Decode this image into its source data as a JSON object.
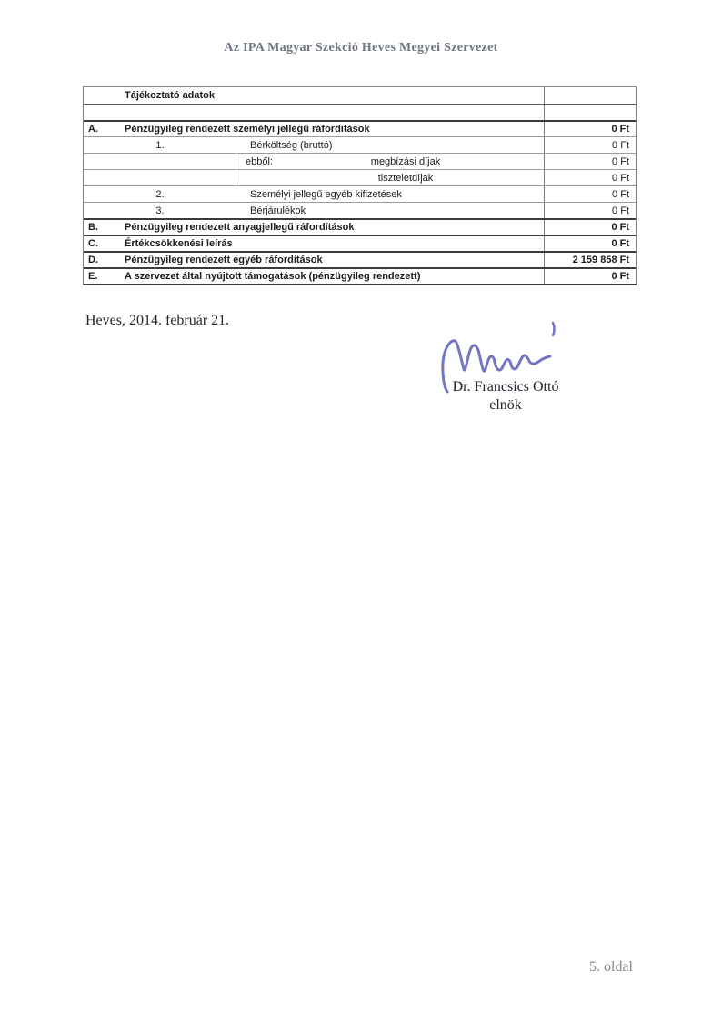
{
  "header": {
    "title": "Az IPA Magyar Szekció Heves Megyei Szervezet",
    "title_color": "#6e7580"
  },
  "table": {
    "rows": [
      {
        "style": "header",
        "text": "Tájékoztató adatok",
        "value": ""
      },
      {
        "style": "empty",
        "value": ""
      },
      {
        "style": "section",
        "letter": "A.",
        "text": "Pénzügyileg rendezett személyi jellegű ráfordítások",
        "value": "0 Ft"
      },
      {
        "style": "item",
        "num": "1.",
        "text": "Bérköltség (bruttó)",
        "value": "0 Ft"
      },
      {
        "style": "sub",
        "prefix": "ebből:",
        "text": "megbízási díjak",
        "value": "0 Ft"
      },
      {
        "style": "sub",
        "text": "tiszteletdíjak",
        "value": "0 Ft"
      },
      {
        "style": "item",
        "num": "2.",
        "text": "Személyi jellegű egyéb kifizetések",
        "value": "0 Ft"
      },
      {
        "style": "item",
        "num": "3.",
        "text": "Bérjárulékok",
        "value": "0 Ft"
      },
      {
        "style": "section",
        "letter": "B.",
        "text": "Pénzügyileg rendezett anyagjellegű ráfordítások",
        "value": "0 Ft"
      },
      {
        "style": "section",
        "letter": "C.",
        "text": "Értékcsökkenési leírás",
        "value": "0 Ft"
      },
      {
        "style": "section",
        "letter": "D.",
        "text": "Pénzügyileg rendezett egyéb ráfordítások",
        "value": "2 159 858 Ft"
      },
      {
        "style": "section",
        "letter": "E.",
        "text": "A szervezet által nyújtott támogatások (pénzügyileg rendezett)",
        "value": "0 Ft"
      }
    ]
  },
  "closing": {
    "date_line": "Heves, 2014. február 21.",
    "signer_name": "Dr. Francsics Ottó",
    "signer_title": "elnök",
    "ink_color": "#5c5eb5"
  },
  "footer": {
    "page_label": "5. oldal",
    "color": "#8a8a8a"
  }
}
